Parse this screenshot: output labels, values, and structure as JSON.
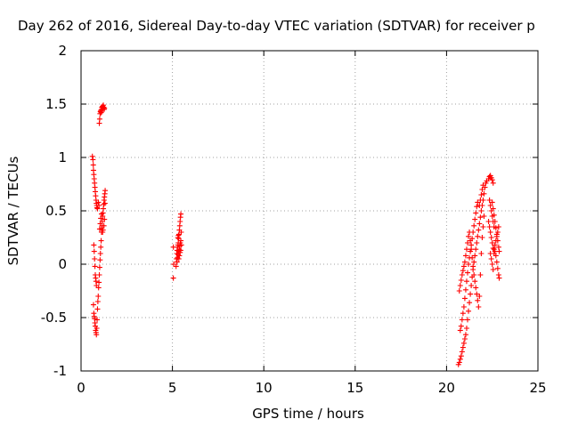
{
  "chart_data": {
    "type": "scatter",
    "title": "Day 262 of 2016, Sidereal Day-to-day VTEC variation (SDTVAR) for receiver p",
    "xlabel": "GPS time / hours",
    "ylabel": "SDTVAR / TECUs",
    "xlim": [
      0,
      25
    ],
    "ylim": [
      -1,
      2
    ],
    "xticks": [
      "0",
      "5",
      "10",
      "15",
      "20",
      "25"
    ],
    "yticks": [
      "-1",
      "-0.5",
      "0",
      "0.5",
      "1",
      "1.5",
      "2"
    ],
    "grid": true,
    "marker": "+",
    "color": "#ff0000",
    "series": [
      {
        "points": [
          [
            0.62,
            1.01
          ],
          [
            0.65,
            0.98
          ],
          [
            0.67,
            0.93
          ],
          [
            0.68,
            0.88
          ],
          [
            0.7,
            0.84
          ],
          [
            0.72,
            0.8
          ],
          [
            0.74,
            0.76
          ],
          [
            0.76,
            0.72
          ],
          [
            0.78,
            0.68
          ],
          [
            0.8,
            0.64
          ],
          [
            0.82,
            0.6
          ],
          [
            0.84,
            0.57
          ],
          [
            0.86,
            0.55
          ],
          [
            0.88,
            0.53
          ],
          [
            0.9,
            0.52
          ],
          [
            0.7,
            0.18
          ],
          [
            0.72,
            0.12
          ],
          [
            0.74,
            0.05
          ],
          [
            0.76,
            -0.02
          ],
          [
            0.78,
            -0.1
          ],
          [
            0.8,
            -0.13
          ],
          [
            0.82,
            -0.16
          ],
          [
            0.84,
            -0.2
          ],
          [
            0.68,
            -0.38
          ],
          [
            0.7,
            -0.46
          ],
          [
            0.72,
            -0.49
          ],
          [
            0.74,
            -0.51
          ],
          [
            0.76,
            -0.55
          ],
          [
            0.78,
            -0.58
          ],
          [
            0.8,
            -0.62
          ],
          [
            0.82,
            -0.64
          ],
          [
            0.84,
            -0.66
          ],
          [
            0.86,
            -0.6
          ],
          [
            0.88,
            -0.52
          ],
          [
            0.9,
            -0.42
          ],
          [
            0.92,
            -0.35
          ],
          [
            0.94,
            -0.3
          ],
          [
            0.96,
            -0.22
          ],
          [
            0.98,
            -0.17
          ],
          [
            1.0,
            -0.1
          ],
          [
            1.02,
            -0.03
          ],
          [
            1.04,
            0.04
          ],
          [
            1.06,
            0.1
          ],
          [
            1.08,
            0.16
          ],
          [
            1.1,
            0.22
          ],
          [
            1.12,
            0.3
          ],
          [
            1.14,
            0.34
          ],
          [
            1.16,
            0.4
          ],
          [
            1.18,
            0.45
          ],
          [
            1.2,
            0.48
          ],
          [
            1.22,
            0.52
          ],
          [
            1.24,
            0.56
          ],
          [
            1.26,
            0.6
          ],
          [
            1.28,
            0.63
          ],
          [
            1.3,
            0.66
          ],
          [
            1.32,
            0.69
          ],
          [
            0.95,
            0.58
          ],
          [
            0.98,
            0.55
          ],
          [
            1.02,
            0.33
          ],
          [
            1.05,
            0.38
          ],
          [
            1.08,
            0.43
          ],
          [
            1.12,
            0.47
          ],
          [
            1.15,
            0.36
          ],
          [
            1.18,
            0.3
          ],
          [
            1.2,
            0.32
          ],
          [
            1.25,
            0.36
          ],
          [
            1.28,
            0.42
          ],
          [
            1.31,
            0.57
          ],
          [
            1.0,
            1.32
          ],
          [
            1.02,
            1.36
          ],
          [
            1.04,
            1.41
          ],
          [
            1.06,
            1.43
          ],
          [
            1.08,
            1.44
          ],
          [
            1.1,
            1.42
          ],
          [
            1.12,
            1.45
          ],
          [
            1.14,
            1.47
          ],
          [
            1.16,
            1.45
          ],
          [
            1.18,
            1.48
          ],
          [
            1.2,
            1.46
          ],
          [
            1.22,
            1.49
          ],
          [
            1.24,
            1.47
          ],
          [
            1.26,
            1.45
          ],
          [
            1.28,
            1.46
          ]
        ]
      },
      {
        "points": [
          [
            5.05,
            -0.13
          ],
          [
            5.05,
            0.16
          ],
          [
            5.07,
            0.0
          ],
          [
            5.2,
            -0.02
          ],
          [
            5.22,
            0.05
          ],
          [
            5.24,
            0.1
          ],
          [
            5.26,
            0.13
          ],
          [
            5.28,
            0.16
          ],
          [
            5.3,
            0.18
          ],
          [
            5.32,
            0.2
          ],
          [
            5.34,
            0.24
          ],
          [
            5.36,
            0.28
          ],
          [
            5.38,
            0.32
          ],
          [
            5.4,
            0.36
          ],
          [
            5.42,
            0.4
          ],
          [
            5.44,
            0.44
          ],
          [
            5.46,
            0.47
          ],
          [
            5.25,
            0.02
          ],
          [
            5.28,
            0.06
          ],
          [
            5.31,
            0.09
          ],
          [
            5.34,
            0.12
          ],
          [
            5.37,
            0.14
          ],
          [
            5.4,
            0.17
          ],
          [
            5.43,
            0.2
          ],
          [
            5.46,
            0.22
          ],
          [
            5.49,
            0.18
          ],
          [
            5.35,
            0.05
          ],
          [
            5.38,
            0.08
          ],
          [
            5.42,
            0.11
          ],
          [
            5.45,
            0.13
          ],
          [
            5.48,
            0.3
          ],
          [
            5.3,
            0.25
          ],
          [
            5.33,
            0.27
          ]
        ]
      },
      {
        "points": [
          [
            20.65,
            -0.94
          ],
          [
            20.7,
            -0.92
          ],
          [
            20.75,
            -0.89
          ],
          [
            20.8,
            -0.86
          ],
          [
            20.85,
            -0.82
          ],
          [
            20.9,
            -0.78
          ],
          [
            20.95,
            -0.74
          ],
          [
            21.0,
            -0.7
          ],
          [
            21.05,
            -0.66
          ],
          [
            21.1,
            -0.6
          ],
          [
            21.15,
            -0.52
          ],
          [
            21.2,
            -0.44
          ],
          [
            21.25,
            -0.36
          ],
          [
            21.3,
            -0.28
          ],
          [
            21.35,
            -0.2
          ],
          [
            21.4,
            -0.12
          ],
          [
            21.45,
            -0.05
          ],
          [
            21.5,
            0.02
          ],
          [
            21.55,
            0.08
          ],
          [
            21.6,
            0.14
          ],
          [
            21.65,
            0.2
          ],
          [
            21.7,
            0.26
          ],
          [
            21.75,
            0.32
          ],
          [
            21.8,
            0.38
          ],
          [
            21.85,
            0.44
          ],
          [
            21.9,
            0.5
          ],
          [
            21.95,
            0.55
          ],
          [
            22.0,
            0.6
          ],
          [
            22.05,
            0.66
          ],
          [
            22.1,
            0.72
          ],
          [
            22.15,
            0.76
          ],
          [
            22.2,
            0.78
          ],
          [
            20.75,
            -0.62
          ],
          [
            20.8,
            -0.58
          ],
          [
            20.85,
            -0.52
          ],
          [
            20.9,
            -0.46
          ],
          [
            20.95,
            -0.4
          ],
          [
            21.0,
            -0.32
          ],
          [
            21.05,
            -0.24
          ],
          [
            21.1,
            -0.16
          ],
          [
            21.15,
            -0.08
          ],
          [
            21.2,
            0.0
          ],
          [
            21.25,
            0.06
          ],
          [
            21.3,
            0.12
          ],
          [
            21.35,
            0.18
          ],
          [
            21.4,
            0.24
          ],
          [
            21.45,
            0.3
          ],
          [
            21.5,
            0.36
          ],
          [
            21.55,
            0.42
          ],
          [
            21.6,
            0.48
          ],
          [
            21.65,
            0.54
          ],
          [
            21.7,
            0.58
          ],
          [
            20.7,
            -0.25
          ],
          [
            20.75,
            -0.2
          ],
          [
            20.8,
            -0.15
          ],
          [
            20.85,
            -0.1
          ],
          [
            20.9,
            -0.06
          ],
          [
            20.95,
            -0.02
          ],
          [
            21.0,
            0.02
          ],
          [
            21.05,
            0.08
          ],
          [
            21.1,
            0.14
          ],
          [
            21.15,
            0.2
          ],
          [
            21.2,
            0.26
          ],
          [
            21.25,
            0.3
          ],
          [
            21.3,
            0.22
          ],
          [
            21.35,
            0.14
          ],
          [
            21.4,
            0.06
          ],
          [
            21.45,
            -0.02
          ],
          [
            21.5,
            -0.1
          ],
          [
            21.55,
            -0.16
          ],
          [
            21.6,
            -0.22
          ],
          [
            21.65,
            -0.28
          ],
          [
            21.7,
            -0.34
          ],
          [
            21.75,
            -0.4
          ],
          [
            21.8,
            -0.3
          ],
          [
            21.85,
            -0.1
          ],
          [
            21.9,
            0.1
          ],
          [
            21.95,
            0.25
          ],
          [
            22.0,
            0.35
          ],
          [
            22.05,
            0.45
          ],
          [
            21.8,
            0.55
          ],
          [
            21.85,
            0.6
          ],
          [
            21.9,
            0.65
          ],
          [
            21.95,
            0.7
          ],
          [
            22.0,
            0.74
          ],
          [
            22.3,
            0.8
          ],
          [
            22.35,
            0.82
          ],
          [
            22.4,
            0.83
          ],
          [
            22.45,
            0.81
          ],
          [
            22.5,
            0.79
          ],
          [
            22.55,
            0.76
          ],
          [
            22.35,
            0.6
          ],
          [
            22.4,
            0.55
          ],
          [
            22.45,
            0.5
          ],
          [
            22.5,
            0.45
          ],
          [
            22.55,
            0.4
          ],
          [
            22.6,
            0.35
          ],
          [
            22.3,
            0.4
          ],
          [
            22.35,
            0.35
          ],
          [
            22.4,
            0.3
          ],
          [
            22.45,
            0.25
          ],
          [
            22.5,
            0.2
          ],
          [
            22.55,
            0.15
          ],
          [
            22.6,
            0.1
          ],
          [
            22.65,
            0.12
          ],
          [
            22.7,
            0.08
          ],
          [
            22.75,
            0.02
          ],
          [
            22.8,
            -0.04
          ],
          [
            22.85,
            -0.1
          ],
          [
            22.88,
            -0.13
          ],
          [
            22.5,
            0.58
          ],
          [
            22.55,
            0.52
          ],
          [
            22.6,
            0.46
          ],
          [
            22.65,
            0.4
          ],
          [
            22.7,
            0.34
          ],
          [
            22.75,
            0.28
          ],
          [
            22.8,
            0.22
          ],
          [
            22.85,
            0.16
          ],
          [
            22.88,
            0.12
          ],
          [
            22.4,
            0.1
          ],
          [
            22.45,
            0.05
          ],
          [
            22.5,
            0.0
          ],
          [
            22.55,
            -0.05
          ],
          [
            22.6,
            0.14
          ],
          [
            22.65,
            0.18
          ],
          [
            22.7,
            0.22
          ],
          [
            22.75,
            0.26
          ],
          [
            22.8,
            0.3
          ],
          [
            22.85,
            0.35
          ]
        ]
      }
    ]
  }
}
